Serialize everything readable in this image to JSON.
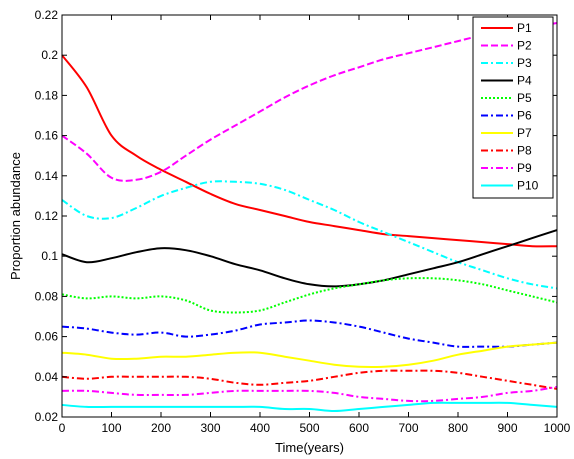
{
  "chart_data": {
    "type": "line",
    "title": "",
    "xlabel": "Time(years)",
    "ylabel": "Proportion abundance",
    "xlim": [
      0,
      1000
    ],
    "ylim": [
      0.02,
      0.22
    ],
    "xticks": [
      "0",
      "100",
      "200",
      "300",
      "400",
      "500",
      "600",
      "700",
      "800",
      "900",
      "1000"
    ],
    "yticks": [
      "0.02",
      "0.04",
      "0.06",
      "0.08",
      "0.1",
      "0.12",
      "0.14",
      "0.16",
      "0.18",
      "0.2",
      "0.22"
    ],
    "grid": false,
    "legend_position": "top-right",
    "x": [
      0,
      50,
      100,
      150,
      200,
      250,
      300,
      350,
      400,
      450,
      500,
      550,
      600,
      650,
      700,
      750,
      800,
      850,
      900,
      950,
      1000
    ],
    "series": [
      {
        "name": "P1",
        "color": "#ff0000",
        "dash": "solid",
        "values": [
          0.2,
          0.184,
          0.16,
          0.15,
          0.143,
          0.137,
          0.131,
          0.126,
          0.123,
          0.12,
          0.117,
          0.115,
          0.113,
          0.111,
          0.11,
          0.109,
          0.108,
          0.107,
          0.106,
          0.105,
          0.105
        ]
      },
      {
        "name": "P2",
        "color": "#ff00ff",
        "dash": "dashed",
        "values": [
          0.16,
          0.151,
          0.139,
          0.138,
          0.142,
          0.15,
          0.158,
          0.165,
          0.172,
          0.179,
          0.185,
          0.19,
          0.194,
          0.198,
          0.201,
          0.204,
          0.207,
          0.21,
          0.212,
          0.214,
          0.216
        ]
      },
      {
        "name": "P3",
        "color": "#00ffff",
        "dash": "dashdot",
        "values": [
          0.128,
          0.12,
          0.119,
          0.124,
          0.13,
          0.134,
          0.137,
          0.137,
          0.136,
          0.133,
          0.128,
          0.123,
          0.117,
          0.112,
          0.107,
          0.102,
          0.097,
          0.093,
          0.089,
          0.086,
          0.084
        ]
      },
      {
        "name": "P4",
        "color": "#000000",
        "dash": "solid",
        "values": [
          0.101,
          0.097,
          0.099,
          0.102,
          0.104,
          0.103,
          0.1,
          0.096,
          0.093,
          0.089,
          0.086,
          0.085,
          0.086,
          0.088,
          0.091,
          0.094,
          0.097,
          0.101,
          0.105,
          0.109,
          0.113
        ]
      },
      {
        "name": "P5",
        "color": "#00ff00",
        "dash": "dotted",
        "values": [
          0.081,
          0.079,
          0.08,
          0.079,
          0.08,
          0.078,
          0.073,
          0.072,
          0.073,
          0.077,
          0.081,
          0.084,
          0.086,
          0.088,
          0.089,
          0.089,
          0.088,
          0.086,
          0.083,
          0.08,
          0.077
        ]
      },
      {
        "name": "P6",
        "color": "#0000ff",
        "dash": "dashdot",
        "values": [
          0.065,
          0.064,
          0.062,
          0.061,
          0.062,
          0.06,
          0.061,
          0.063,
          0.066,
          0.067,
          0.068,
          0.067,
          0.065,
          0.062,
          0.059,
          0.057,
          0.055,
          0.055,
          0.055,
          0.056,
          0.057
        ]
      },
      {
        "name": "P7",
        "color": "#ffff00",
        "dash": "solid",
        "values": [
          0.052,
          0.051,
          0.049,
          0.049,
          0.05,
          0.05,
          0.051,
          0.052,
          0.052,
          0.05,
          0.048,
          0.046,
          0.045,
          0.045,
          0.046,
          0.048,
          0.051,
          0.053,
          0.055,
          0.056,
          0.057
        ]
      },
      {
        "name": "P8",
        "color": "#ff0000",
        "dash": "dashdot",
        "values": [
          0.04,
          0.039,
          0.04,
          0.04,
          0.04,
          0.04,
          0.039,
          0.037,
          0.036,
          0.037,
          0.038,
          0.04,
          0.042,
          0.043,
          0.043,
          0.043,
          0.042,
          0.04,
          0.038,
          0.036,
          0.034
        ]
      },
      {
        "name": "P9",
        "color": "#ff00ff",
        "dash": "dashdot",
        "values": [
          0.033,
          0.033,
          0.032,
          0.031,
          0.031,
          0.031,
          0.032,
          0.033,
          0.033,
          0.033,
          0.033,
          0.032,
          0.03,
          0.029,
          0.028,
          0.028,
          0.029,
          0.03,
          0.032,
          0.033,
          0.035
        ]
      },
      {
        "name": "P10",
        "color": "#00ffff",
        "dash": "solid",
        "values": [
          0.026,
          0.025,
          0.025,
          0.025,
          0.025,
          0.025,
          0.025,
          0.025,
          0.025,
          0.024,
          0.024,
          0.023,
          0.024,
          0.025,
          0.026,
          0.027,
          0.027,
          0.027,
          0.027,
          0.026,
          0.025
        ]
      }
    ]
  }
}
